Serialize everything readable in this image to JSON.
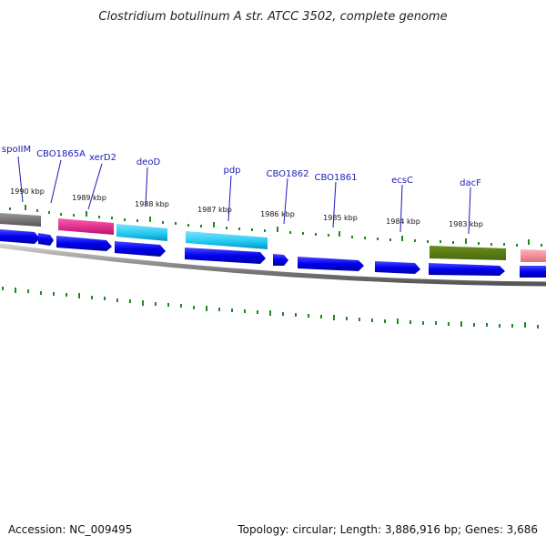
{
  "title": "Clostridium botulinum A str. ATCC 3502, complete genome",
  "footer": {
    "accession": "Accession: NC_009495",
    "summary": "Topology: circular; Length: 3,886,916 bp; Genes: 3,686"
  },
  "ticks": [
    "1990 kbp",
    "1989 kbp",
    "1988 kbp",
    "1987 kbp",
    "1986 kbp",
    "1985 kbp",
    "1984 kbp",
    "1983 kbp"
  ],
  "genes": [
    "spoIIM",
    "CBO1865A",
    "xerD2",
    "deoD",
    "pdp",
    "CBO1862",
    "CBO1861",
    "ecsC",
    "dacF"
  ],
  "colors": {
    "backbone": "#8a8a8a",
    "cds": "#0000ee",
    "tick": "#1e8a1e",
    "label": "#1a1ab8",
    "feature_gray": "#6e6e6e",
    "feature_magenta": "#e8188a",
    "feature_cyan": "#1ec8f0",
    "feature_olive": "#6e9a22",
    "feature_salmon": "#f08a94"
  }
}
